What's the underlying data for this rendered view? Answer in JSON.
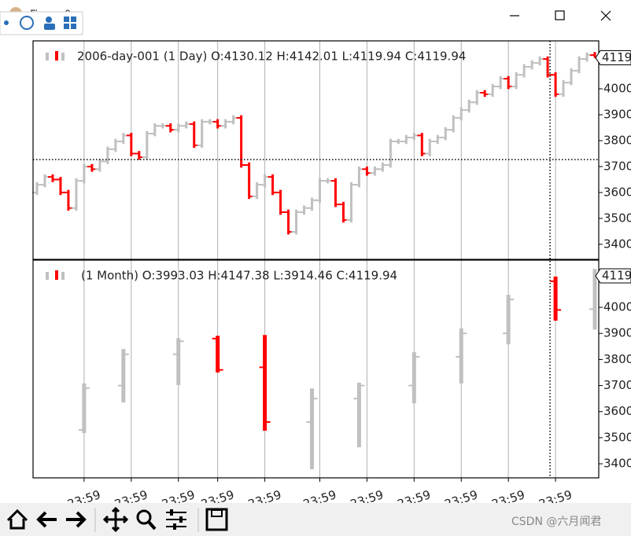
{
  "window": {
    "title": "Figure 0"
  },
  "watermark": "CSDN @六月闻君",
  "chart_data": [
    {
      "type": "ohlc",
      "legend": "2006-day-001 (1 Day) O:4130.12 H:4142.01 L:4119.94 C:4119.94",
      "up_color": "#c0c0c0",
      "down_color": "#ff0000",
      "x": [
        0,
        1,
        2,
        3,
        4,
        5,
        6,
        7,
        8,
        9,
        10,
        11,
        12,
        13,
        14,
        15,
        16,
        17,
        18,
        19,
        20,
        21,
        22,
        23,
        24,
        25,
        26,
        27,
        28,
        29,
        30,
        31,
        32,
        33,
        34,
        35,
        36,
        37,
        38,
        39,
        40,
        41,
        42,
        43,
        44,
        45,
        46,
        47,
        48,
        49,
        50,
        51,
        52,
        53,
        54,
        55,
        56,
        57,
        58,
        59,
        60,
        61,
        62,
        63,
        64,
        65,
        66,
        67,
        68,
        69,
        70,
        71
      ],
      "open": [
        3600,
        3630,
        3660,
        3650,
        3600,
        3540,
        3645,
        3700,
        3690,
        3720,
        3767,
        3797,
        3820,
        3750,
        3736,
        3827,
        3857,
        3857,
        3842,
        3857,
        3864,
        3782,
        3873,
        3873,
        3857,
        3873,
        3888,
        3706,
        3585,
        3630,
        3660,
        3600,
        3524,
        3448,
        3524,
        3540,
        3570,
        3645,
        3645,
        3554,
        3494,
        3630,
        3690,
        3675,
        3690,
        3706,
        3797,
        3797,
        3812,
        3820,
        3750,
        3797,
        3812,
        3842,
        3888,
        3918,
        3948,
        3985,
        3979,
        4009,
        4039,
        4009,
        4054,
        4085,
        4100,
        4115,
        4054,
        3979,
        4024,
        4070,
        4115,
        4130.12
      ],
      "high": [
        3640,
        3670,
        3670,
        3660,
        3610,
        3655,
        3710,
        3710,
        3730,
        3777,
        3807,
        3830,
        3830,
        3760,
        3837,
        3867,
        3867,
        3867,
        3867,
        3874,
        3874,
        3883,
        3883,
        3883,
        3883,
        3898,
        3898,
        3716,
        3640,
        3670,
        3670,
        3610,
        3534,
        3534,
        3550,
        3580,
        3655,
        3655,
        3655,
        3564,
        3640,
        3700,
        3700,
        3700,
        3716,
        3807,
        3807,
        3822,
        3830,
        3830,
        3807,
        3822,
        3852,
        3898,
        3928,
        3958,
        3995,
        3995,
        4019,
        4049,
        4049,
        4064,
        4095,
        4110,
        4125,
        4125,
        4064,
        4034,
        4080,
        4125,
        4140,
        4142.01
      ],
      "low": [
        3590,
        3620,
        3640,
        3590,
        3530,
        3530,
        3635,
        3680,
        3680,
        3710,
        3757,
        3787,
        3740,
        3726,
        3726,
        3817,
        3847,
        3832,
        3832,
        3847,
        3772,
        3772,
        3863,
        3847,
        3847,
        3863,
        3696,
        3575,
        3575,
        3620,
        3590,
        3514,
        3438,
        3438,
        3514,
        3530,
        3560,
        3635,
        3544,
        3484,
        3484,
        3620,
        3665,
        3665,
        3680,
        3696,
        3787,
        3787,
        3802,
        3740,
        3740,
        3787,
        3802,
        3832,
        3878,
        3908,
        3938,
        3969,
        3969,
        3999,
        3999,
        3999,
        4044,
        4075,
        4090,
        4044,
        3969,
        3969,
        4014,
        4060,
        4105,
        4119.94
      ],
      "close": [
        3630,
        3660,
        3650,
        3600,
        3540,
        3645,
        3700,
        3690,
        3720,
        3767,
        3797,
        3820,
        3750,
        3736,
        3827,
        3857,
        3857,
        3842,
        3857,
        3864,
        3782,
        3873,
        3873,
        3857,
        3873,
        3888,
        3706,
        3585,
        3630,
        3660,
        3600,
        3524,
        3448,
        3524,
        3540,
        3570,
        3645,
        3645,
        3554,
        3494,
        3630,
        3690,
        3675,
        3690,
        3706,
        3797,
        3797,
        3812,
        3820,
        3750,
        3797,
        3812,
        3842,
        3888,
        3918,
        3948,
        3985,
        3979,
        4009,
        4039,
        4009,
        4054,
        4085,
        4100,
        4115,
        4054,
        3979,
        4024,
        4070,
        4115,
        4130,
        4119.94
      ],
      "xlim": [
        -0.5,
        71.5
      ],
      "ylim": [
        3342,
        4185
      ],
      "yticks": [
        3400,
        3500,
        3600,
        3700,
        3800,
        3900,
        4000
      ],
      "xticks": [
        6,
        12,
        18,
        23,
        29,
        36,
        42,
        48,
        54,
        60,
        66
      ],
      "grid": true,
      "crosshair": {
        "x": 65.3,
        "y": 3727
      }
    },
    {
      "type": "ohlc",
      "legend": "(1 Month) O:3993.03 H:4147.38 L:3914.46 C:4119.94",
      "up_color": "#c0c0c0",
      "down_color": "#ff0000",
      "x": [
        6,
        11,
        18,
        23,
        29,
        35,
        41,
        48,
        54,
        60,
        66,
        71
      ],
      "open": [
        3530,
        3700,
        3820,
        3880,
        3770,
        3560,
        3650,
        3700,
        3810,
        3900,
        4100,
        3993.03
      ],
      "high": [
        3708,
        3840,
        3882,
        3891,
        3894,
        3689,
        3711,
        3828,
        3919,
        4048,
        4118,
        4147.38
      ],
      "low": [
        3518,
        3635,
        3702,
        3750,
        3527,
        3379,
        3463,
        3632,
        3708,
        3858,
        3949,
        3914.46
      ],
      "close": [
        3690,
        3820,
        3870,
        3760,
        3560,
        3650,
        3700,
        3810,
        3900,
        4030,
        3990,
        4119.94
      ],
      "xlim": [
        -0.5,
        71.5
      ],
      "ylim": [
        3346,
        4181
      ],
      "yticks": [
        3400,
        3500,
        3600,
        3700,
        3800,
        3900,
        4000
      ],
      "xticks": [
        {
          "value": 6,
          "label": "23:59"
        },
        {
          "value": 12,
          "label": "23:59"
        },
        {
          "value": 18,
          "label": "23:59"
        },
        {
          "value": 23,
          "label": "23:59"
        },
        {
          "value": 29,
          "label": "23:59"
        },
        {
          "value": 36,
          "label": "23:59"
        },
        {
          "value": 42,
          "label": "23:59"
        },
        {
          "value": 48,
          "label": "23:59"
        },
        {
          "value": 54,
          "label": "23:59"
        },
        {
          "value": 60,
          "label": "23:59"
        },
        {
          "value": 66,
          "label": "23:59"
        }
      ],
      "grid": true
    }
  ]
}
